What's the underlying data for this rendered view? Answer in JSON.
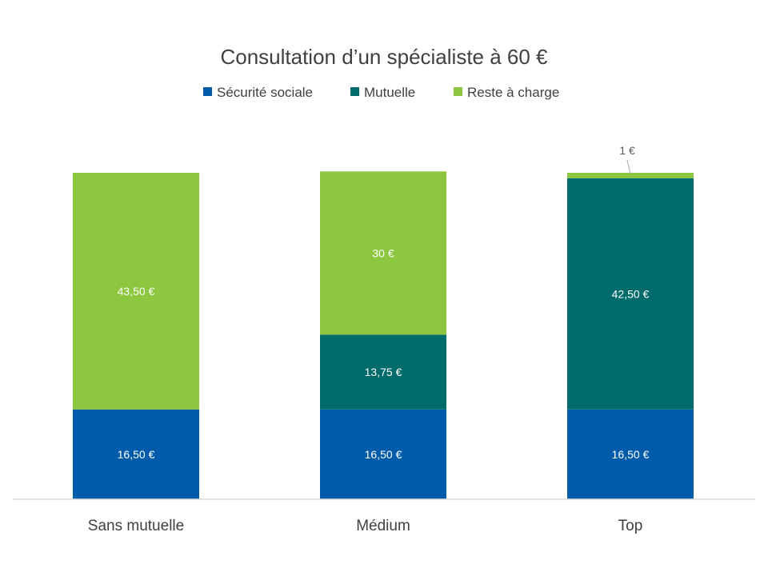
{
  "chart_data": {
    "type": "bar",
    "stacked": true,
    "title": "Consultation d’un spécialiste à 60 €",
    "categories": [
      "Sans mutuelle",
      "Médium",
      "Top"
    ],
    "series": [
      {
        "name": "Sécurité sociale",
        "color": "#005BAA",
        "values": [
          16.5,
          16.5,
          16.5
        ],
        "labels": [
          "16,50 €",
          "16,50 €",
          "16,50 €"
        ]
      },
      {
        "name": "Mutuelle",
        "color": "#006B6B",
        "values": [
          0,
          13.75,
          42.5
        ],
        "labels": [
          "",
          "13,75 €",
          "42,50 €"
        ]
      },
      {
        "name": "Reste à charge",
        "color": "#8DC63F",
        "values": [
          43.5,
          30,
          1
        ],
        "labels": [
          "43,50 €",
          "30 €",
          "1 €"
        ]
      }
    ],
    "ylim": [
      0,
      60
    ],
    "grid": false,
    "legend": "top-center"
  }
}
